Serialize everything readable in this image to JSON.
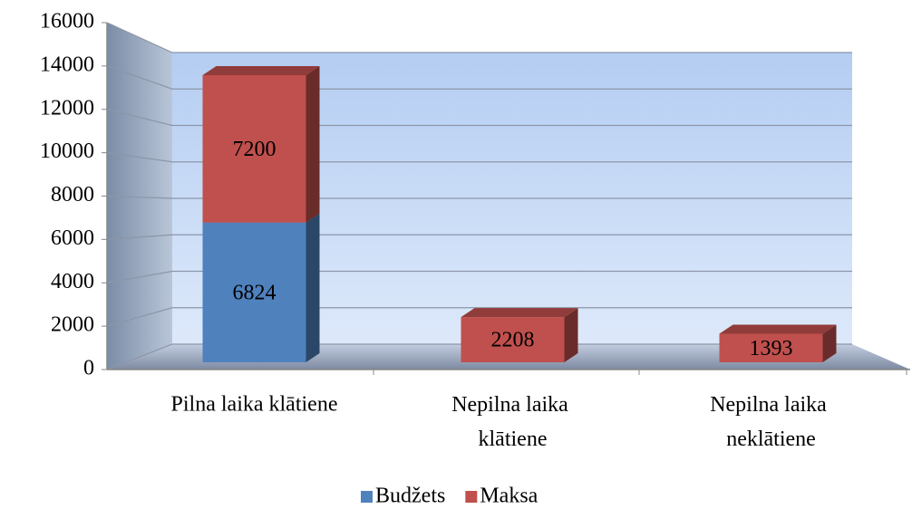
{
  "chart_data": {
    "type": "bar3d_stacked",
    "categories": [
      "Pilna laika klātiene",
      "Nepilna laika klātiene",
      "Nepilna laika neklātiene"
    ],
    "series": [
      {
        "name": "Budžets",
        "color": "#4f81bd",
        "values": [
          6824,
          null,
          null
        ]
      },
      {
        "name": "Maksa",
        "color": "#c0504d",
        "values": [
          7200,
          2208,
          1393
        ]
      }
    ],
    "ylim": [
      0,
      16000
    ],
    "yticks": [
      0,
      2000,
      4000,
      6000,
      8000,
      10000,
      12000,
      14000,
      16000
    ],
    "grid": true,
    "legend": "bottom"
  }
}
